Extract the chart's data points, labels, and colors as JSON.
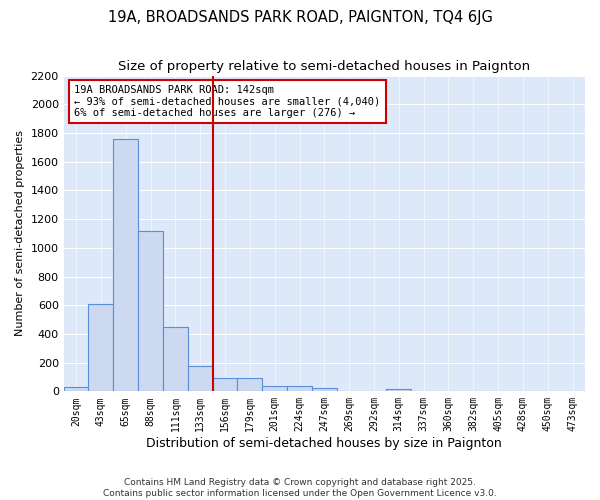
{
  "title": "19A, BROADSANDS PARK ROAD, PAIGNTON, TQ4 6JG",
  "subtitle": "Size of property relative to semi-detached houses in Paignton",
  "xlabel": "Distribution of semi-detached houses by size in Paignton",
  "ylabel": "Number of semi-detached properties",
  "bin_labels": [
    "20sqm",
    "43sqm",
    "65sqm",
    "88sqm",
    "111sqm",
    "133sqm",
    "156sqm",
    "179sqm",
    "201sqm",
    "224sqm",
    "247sqm",
    "269sqm",
    "292sqm",
    "314sqm",
    "337sqm",
    "360sqm",
    "382sqm",
    "405sqm",
    "428sqm",
    "450sqm",
    "473sqm"
  ],
  "bar_heights": [
    30,
    610,
    1760,
    1120,
    450,
    175,
    90,
    90,
    40,
    40,
    20,
    0,
    0,
    15,
    0,
    0,
    0,
    0,
    0,
    0,
    0
  ],
  "bar_color": "#ccd9f0",
  "bar_edge_color": "#5b8dd9",
  "vline_color": "#cc0000",
  "vline_position": 5.5,
  "annotation_title": "19A BROADSANDS PARK ROAD: 142sqm",
  "annotation_line1": "← 93% of semi-detached houses are smaller (4,040)",
  "annotation_line2": "6% of semi-detached houses are larger (276) →",
  "annotation_box_color": "#ffffff",
  "annotation_box_edge": "#cc0000",
  "ylim": [
    0,
    2200
  ],
  "yticks": [
    0,
    200,
    400,
    600,
    800,
    1000,
    1200,
    1400,
    1600,
    1800,
    2000,
    2200
  ],
  "footer1": "Contains HM Land Registry data © Crown copyright and database right 2025.",
  "footer2": "Contains public sector information licensed under the Open Government Licence v3.0.",
  "bg_color": "#dde8f8",
  "fig_bg_color": "#ffffff",
  "title_fontsize": 10.5,
  "subtitle_fontsize": 9.5
}
